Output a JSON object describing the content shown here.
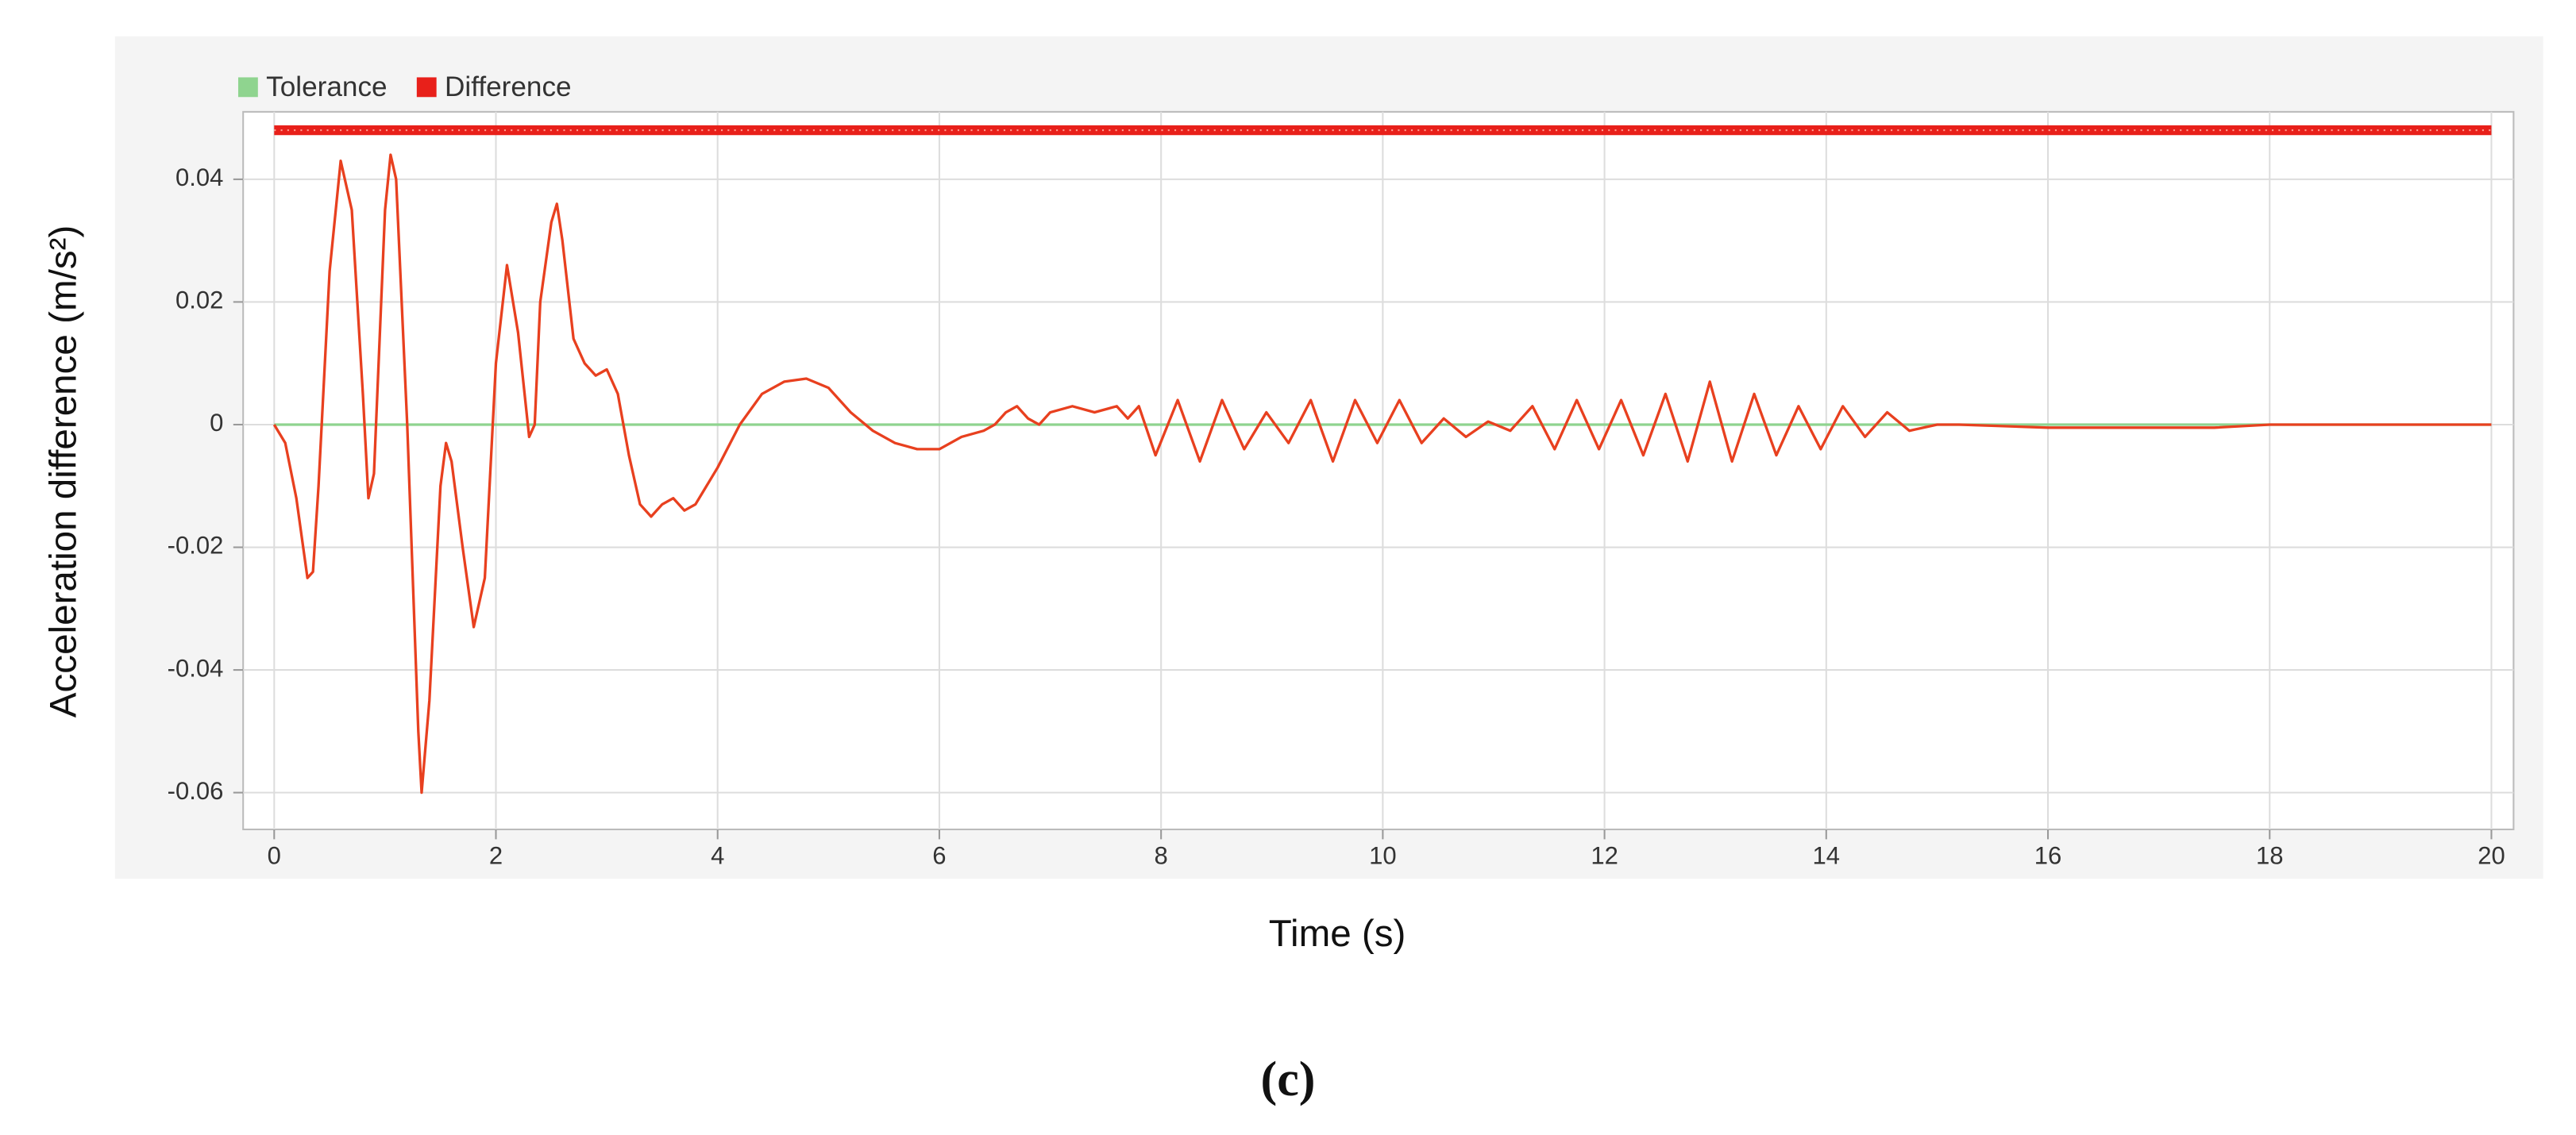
{
  "chart_data": {
    "type": "line",
    "caption": "(c)",
    "xlabel": "Time (s)",
    "ylabel": "Acceleration difference (m/s²)",
    "xlim": [
      -0.28,
      20.2
    ],
    "ylim": [
      -0.066,
      0.051
    ],
    "xticks": [
      0,
      2,
      4,
      6,
      8,
      10,
      12,
      14,
      16,
      18,
      20
    ],
    "yticks": [
      0.04,
      0.02,
      0,
      -0.02,
      -0.04,
      -0.06
    ],
    "grid": true,
    "legend": "top-left",
    "top_band": {
      "value": 0.048,
      "x": [
        0,
        20
      ],
      "color": "#e8201a"
    },
    "series": [
      {
        "name": "Tolerance",
        "color": "#8fd48f",
        "x": [
          0,
          20
        ],
        "values": [
          0,
          0
        ]
      },
      {
        "name": "Difference",
        "color": "#e8401f",
        "x": [
          0,
          0.1,
          0.2,
          0.3,
          0.35,
          0.4,
          0.5,
          0.6,
          0.7,
          0.8,
          0.85,
          0.9,
          1.0,
          1.05,
          1.1,
          1.2,
          1.3,
          1.33,
          1.4,
          1.5,
          1.55,
          1.6,
          1.7,
          1.8,
          1.9,
          2.0,
          2.1,
          2.2,
          2.3,
          2.35,
          2.4,
          2.5,
          2.55,
          2.6,
          2.7,
          2.8,
          2.9,
          3.0,
          3.1,
          3.2,
          3.3,
          3.4,
          3.5,
          3.6,
          3.7,
          3.8,
          3.9,
          4.0,
          4.2,
          4.4,
          4.6,
          4.8,
          5.0,
          5.2,
          5.4,
          5.6,
          5.8,
          6.0,
          6.2,
          6.4,
          6.5,
          6.6,
          6.7,
          6.8,
          6.9,
          7.0,
          7.2,
          7.4,
          7.6,
          7.7,
          7.8,
          7.95,
          8.15,
          8.35,
          8.55,
          8.75,
          8.95,
          9.15,
          9.35,
          9.55,
          9.75,
          9.95,
          10.15,
          10.35,
          10.55,
          10.75,
          10.95,
          11.15,
          11.35,
          11.55,
          11.75,
          11.95,
          12.15,
          12.35,
          12.55,
          12.75,
          12.95,
          13.15,
          13.35,
          13.55,
          13.75,
          13.95,
          14.15,
          14.35,
          14.55,
          14.75,
          15.0,
          15.2,
          16,
          17.5,
          18,
          20
        ],
        "values": [
          0,
          -0.003,
          -0.012,
          -0.025,
          -0.024,
          -0.01,
          0.025,
          0.043,
          0.035,
          0.005,
          -0.012,
          -0.008,
          0.035,
          0.044,
          0.04,
          0.0,
          -0.05,
          -0.06,
          -0.045,
          -0.01,
          -0.003,
          -0.006,
          -0.02,
          -0.033,
          -0.025,
          0.01,
          0.026,
          0.015,
          -0.002,
          0.0,
          0.02,
          0.033,
          0.036,
          0.03,
          0.014,
          0.01,
          0.008,
          0.009,
          0.005,
          -0.005,
          -0.013,
          -0.015,
          -0.013,
          -0.012,
          -0.014,
          -0.013,
          -0.01,
          -0.007,
          0.0,
          0.005,
          0.007,
          0.0075,
          0.006,
          0.002,
          -0.001,
          -0.003,
          -0.004,
          -0.004,
          -0.002,
          -0.001,
          0.0,
          0.002,
          0.003,
          0.001,
          0.0,
          0.002,
          0.003,
          0.002,
          0.003,
          0.001,
          0.003,
          -0.005,
          0.004,
          -0.006,
          0.004,
          -0.004,
          0.002,
          -0.003,
          0.004,
          -0.006,
          0.004,
          -0.003,
          0.004,
          -0.003,
          0.001,
          -0.002,
          0.0005,
          -0.001,
          0.003,
          -0.004,
          0.004,
          -0.004,
          0.004,
          -0.005,
          0.005,
          -0.006,
          0.007,
          -0.006,
          0.005,
          -0.005,
          0.003,
          -0.004,
          0.003,
          -0.002,
          0.002,
          -0.001,
          0.0,
          0.0,
          -0.0005,
          -0.0005,
          0,
          0
        ]
      }
    ]
  }
}
